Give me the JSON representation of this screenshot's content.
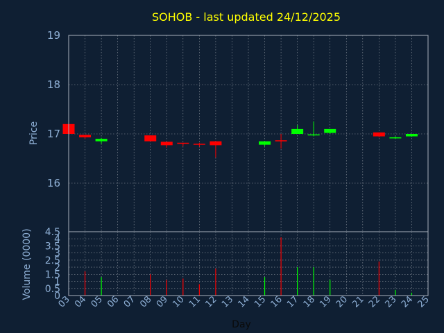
{
  "chart_data": [
    {
      "type": "candlestick",
      "title": "SOHOB - last updated 24/12/2025",
      "ylabel": "Price",
      "ylim": [
        16,
        19
      ],
      "yticks": [
        16,
        17,
        18,
        19
      ],
      "colors": {
        "up": "#00ff00",
        "down": "#ff0000",
        "background": "#0f1f33",
        "title": "#ffff00",
        "axis_text": "#8fb0d6"
      },
      "grid": true,
      "days": [
        "03",
        "04",
        "05",
        "06",
        "07",
        "08",
        "09",
        "10",
        "11",
        "12",
        "13",
        "14",
        "15",
        "16",
        "17",
        "18",
        "19",
        "20",
        "21",
        "22",
        "23",
        "24",
        "25"
      ],
      "candles": [
        {
          "day": "03",
          "open": 17.2,
          "close": 17.0,
          "high": 17.2,
          "low": 17.0
        },
        {
          "day": "04",
          "open": 16.98,
          "close": 16.93,
          "high": 16.98,
          "low": 16.9
        },
        {
          "day": "05",
          "open": 16.85,
          "close": 16.9,
          "high": 16.92,
          "low": 16.8
        },
        {
          "day": "08",
          "open": 16.97,
          "close": 16.85,
          "high": 16.97,
          "low": 16.85
        },
        {
          "day": "09",
          "open": 16.84,
          "close": 16.77,
          "high": 16.84,
          "low": 16.72
        },
        {
          "day": "10",
          "open": 16.82,
          "close": 16.8,
          "high": 16.82,
          "low": 16.75
        },
        {
          "day": "11",
          "open": 16.8,
          "close": 16.79,
          "high": 16.82,
          "low": 16.74
        },
        {
          "day": "12",
          "open": 16.85,
          "close": 16.77,
          "high": 16.85,
          "low": 16.52
        },
        {
          "day": "15",
          "open": 16.78,
          "close": 16.85,
          "high": 16.85,
          "low": 16.75
        },
        {
          "day": "16",
          "open": 16.87,
          "close": 16.86,
          "high": 17.0,
          "low": 16.7
        },
        {
          "day": "17",
          "open": 17.0,
          "close": 17.1,
          "high": 17.18,
          "low": 17.0
        },
        {
          "day": "18",
          "open": 16.98,
          "close": 16.99,
          "high": 17.25,
          "low": 16.95
        },
        {
          "day": "19",
          "open": 17.02,
          "close": 17.1,
          "high": 17.1,
          "low": 17.0
        },
        {
          "day": "22",
          "open": 17.03,
          "close": 16.95,
          "high": 17.03,
          "low": 16.93
        },
        {
          "day": "23",
          "open": 16.92,
          "close": 16.93,
          "high": 16.95,
          "low": 16.9
        },
        {
          "day": "24",
          "open": 16.95,
          "close": 17.0,
          "high": 17.0,
          "low": 16.94
        }
      ]
    },
    {
      "type": "bar",
      "ylabel": "Volume (0000)",
      "xlabel": "Day",
      "ylim": [
        0,
        4.5
      ],
      "yticks": [
        "0",
        "0.5",
        "1",
        "1.5",
        "2",
        "2.5",
        "3",
        "3.5",
        "4",
        "4.5"
      ],
      "grid": true,
      "bars": [
        {
          "day": "03",
          "value": 0.05,
          "color": "red"
        },
        {
          "day": "04",
          "value": 1.7,
          "color": "red"
        },
        {
          "day": "05",
          "value": 1.3,
          "color": "green"
        },
        {
          "day": "08",
          "value": 1.5,
          "color": "red"
        },
        {
          "day": "09",
          "value": 1.1,
          "color": "red"
        },
        {
          "day": "10",
          "value": 1.2,
          "color": "red"
        },
        {
          "day": "11",
          "value": 0.8,
          "color": "red"
        },
        {
          "day": "12",
          "value": 1.9,
          "color": "red"
        },
        {
          "day": "15",
          "value": 1.3,
          "color": "green"
        },
        {
          "day": "16",
          "value": 4.1,
          "color": "red"
        },
        {
          "day": "17",
          "value": 2.0,
          "color": "green"
        },
        {
          "day": "18",
          "value": 2.0,
          "color": "green"
        },
        {
          "day": "19",
          "value": 1.1,
          "color": "green"
        },
        {
          "day": "22",
          "value": 2.4,
          "color": "red"
        },
        {
          "day": "23",
          "value": 0.4,
          "color": "green"
        },
        {
          "day": "24",
          "value": 0.2,
          "color": "green"
        }
      ]
    }
  ]
}
